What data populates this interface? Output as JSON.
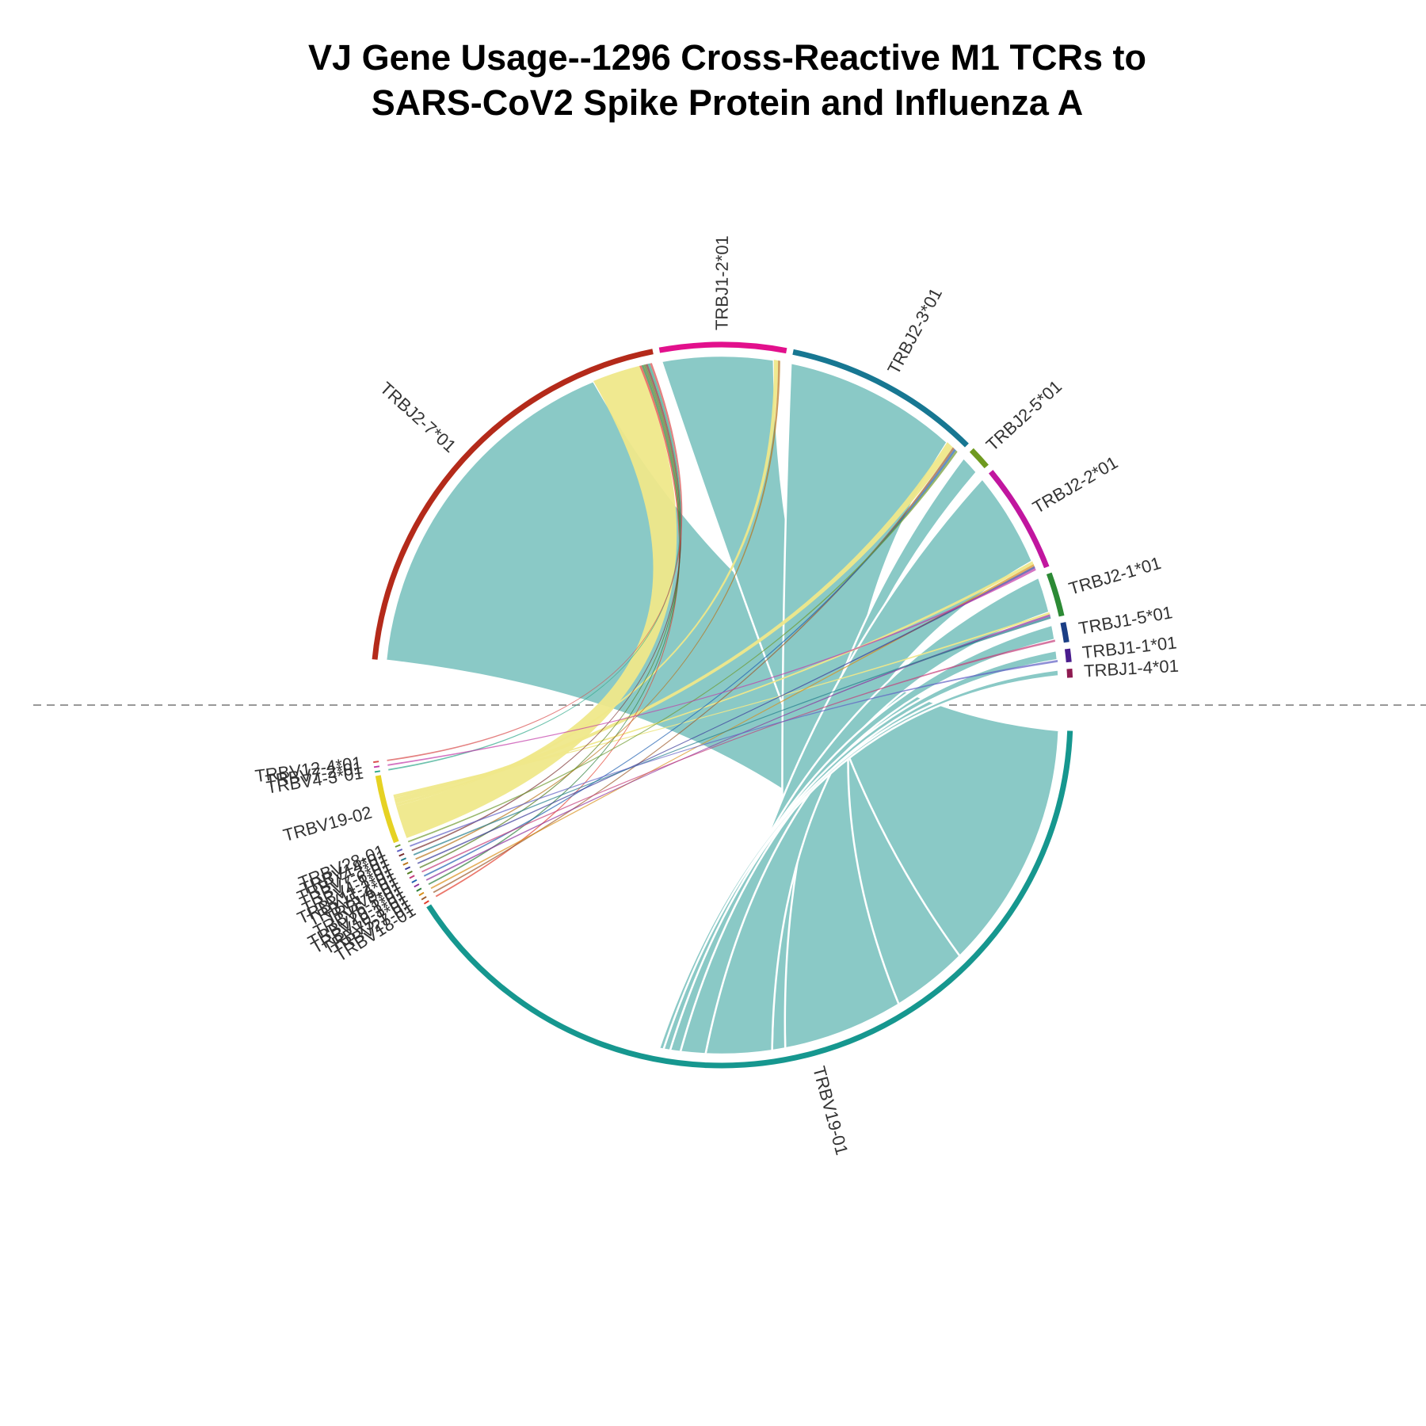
{
  "chart_data": {
    "type": "chord",
    "title": "VJ Gene Usage--1296 Cross-Reactive M1 TCRs to\nSARS-CoV2 Spike Protein and Influenza A",
    "grid": false,
    "legend": "none",
    "j_genes": [
      {
        "name": "TRBJ2-7*01",
        "value": 400,
        "color": "#b42a1a"
      },
      {
        "name": "TRBJ1-2*01",
        "value": 115,
        "color": "#e2108c"
      },
      {
        "name": "TRBJ2-3*01",
        "value": 180,
        "color": "#177792"
      },
      {
        "name": "TRBJ2-5*01",
        "value": 20,
        "color": "#6f9a1f"
      },
      {
        "name": "TRBJ2-2*01",
        "value": 100,
        "color": "#c1169f"
      },
      {
        "name": "TRBJ2-1*01",
        "value": 40,
        "color": "#2c8a35"
      },
      {
        "name": "TRBJ1-5*01",
        "value": 18,
        "color": "#1b3e85"
      },
      {
        "name": "TRBJ1-1*01",
        "value": 12,
        "color": "#4a1d8e"
      },
      {
        "name": "TRBJ1-4*01",
        "value": 8,
        "color": "#8e1b51"
      }
    ],
    "v_genes": [
      {
        "name": "TRBV19-01",
        "value": 1150,
        "color": "#16978f"
      },
      {
        "name": "TRBV18-01",
        "value": 2,
        "color": "#e23d2c"
      },
      {
        "name": "TRBV27-01",
        "value": 2,
        "color": "#9c5a2b"
      },
      {
        "name": "TRBV5-1*01",
        "value": 2,
        "color": "#d98e1a"
      },
      {
        "name": "TRBV10-3*01",
        "value": 2,
        "color": "#2c7f3a"
      },
      {
        "name": "TRBV20-1*01",
        "value": 2,
        "color": "#8b2f9c"
      },
      {
        "name": "TRBV6-5*01",
        "value": 2,
        "color": "#1f5fb0"
      },
      {
        "name": "TRBV9-01",
        "value": 2,
        "color": "#c43c79"
      },
      {
        "name": "TRBV5-4*01",
        "value": 2,
        "color": "#517a1d"
      },
      {
        "name": "TRBV11-2*01",
        "value": 2,
        "color": "#3a3a9a"
      },
      {
        "name": "TRBV4-1*01",
        "value": 2,
        "color": "#b8751b"
      },
      {
        "name": "TRBV7-6*01",
        "value": 2,
        "color": "#237e8c"
      },
      {
        "name": "TRBV7-3*01",
        "value": 2,
        "color": "#7a2f2f"
      },
      {
        "name": "TRBV14*01",
        "value": 2,
        "color": "#5f5fc4"
      },
      {
        "name": "TRBV28-01",
        "value": 2,
        "color": "#6d9a2f"
      },
      {
        "name": "TRBV19-02",
        "value": 90,
        "color": "#e6d223"
      },
      {
        "name": "TRBV4-3*01",
        "value": 2,
        "color": "#2fa88a"
      },
      {
        "name": "TRBV7-2*01",
        "value": 2,
        "color": "#c23ba8"
      },
      {
        "name": "TRBV12-4*01",
        "value": 2,
        "color": "#d94c4c"
      }
    ],
    "links": [
      {
        "source": "TRBV19-01",
        "target": "TRBJ2-7*01",
        "value": 340
      },
      {
        "source": "TRBV19-01",
        "target": "TRBJ1-2*01",
        "value": 105
      },
      {
        "source": "TRBV19-01",
        "target": "TRBJ2-3*01",
        "value": 165
      },
      {
        "source": "TRBV19-01",
        "target": "TRBJ2-5*01",
        "value": 18
      },
      {
        "source": "TRBV19-01",
        "target": "TRBJ2-2*01",
        "value": 90
      },
      {
        "source": "TRBV19-01",
        "target": "TRBJ2-1*01",
        "value": 34
      },
      {
        "source": "TRBV19-01",
        "target": "TRBJ1-5*01",
        "value": 14
      },
      {
        "source": "TRBV19-01",
        "target": "TRBJ1-1*01",
        "value": 9
      },
      {
        "source": "TRBV19-01",
        "target": "TRBJ1-4*01",
        "value": 6
      },
      {
        "source": "TRBV19-02",
        "target": "TRBJ2-7*01",
        "value": 45
      },
      {
        "source": "TRBV19-02",
        "target": "TRBJ1-2*01",
        "value": 4
      },
      {
        "source": "TRBV19-02",
        "target": "TRBJ2-3*01",
        "value": 7
      },
      {
        "source": "TRBV19-02",
        "target": "TRBJ2-2*01",
        "value": 3
      },
      {
        "source": "TRBV19-02",
        "target": "TRBJ2-1*01",
        "value": 2
      },
      {
        "source": "TRBV18-01",
        "target": "TRBJ2-7*01",
        "value": 2
      },
      {
        "source": "TRBV27-01",
        "target": "TRBJ2-3*01",
        "value": 2
      },
      {
        "source": "TRBV5-1*01",
        "target": "TRBJ2-2*01",
        "value": 2
      },
      {
        "source": "TRBV10-3*01",
        "target": "TRBJ2-7*01",
        "value": 2
      },
      {
        "source": "TRBV20-1*01",
        "target": "TRBJ2-1*01",
        "value": 2
      },
      {
        "source": "TRBV6-5*01",
        "target": "TRBJ2-3*01",
        "value": 2
      },
      {
        "source": "TRBV9-01",
        "target": "TRBJ1-5*01",
        "value": 2
      },
      {
        "source": "TRBV5-4*01",
        "target": "TRBJ2-7*01",
        "value": 2
      },
      {
        "source": "TRBV11-2*01",
        "target": "TRBJ2-2*01",
        "value": 2
      },
      {
        "source": "TRBV4-1*01",
        "target": "TRBJ1-2*01",
        "value": 2
      },
      {
        "source": "TRBV7-6*01",
        "target": "TRBJ2-1*01",
        "value": 2
      },
      {
        "source": "TRBV7-3*01",
        "target": "TRBJ2-7*01",
        "value": 2
      },
      {
        "source": "TRBV14*01",
        "target": "TRBJ1-1*01",
        "value": 2
      },
      {
        "source": "TRBV28-01",
        "target": "TRBJ2-3*01",
        "value": 2
      },
      {
        "source": "TRBV4-3*01",
        "target": "TRBJ2-7*01",
        "value": 2
      },
      {
        "source": "TRBV7-2*01",
        "target": "TRBJ2-2*01",
        "value": 2
      },
      {
        "source": "TRBV12-4*01",
        "target": "TRBJ2-7*01",
        "value": 2
      }
    ]
  }
}
